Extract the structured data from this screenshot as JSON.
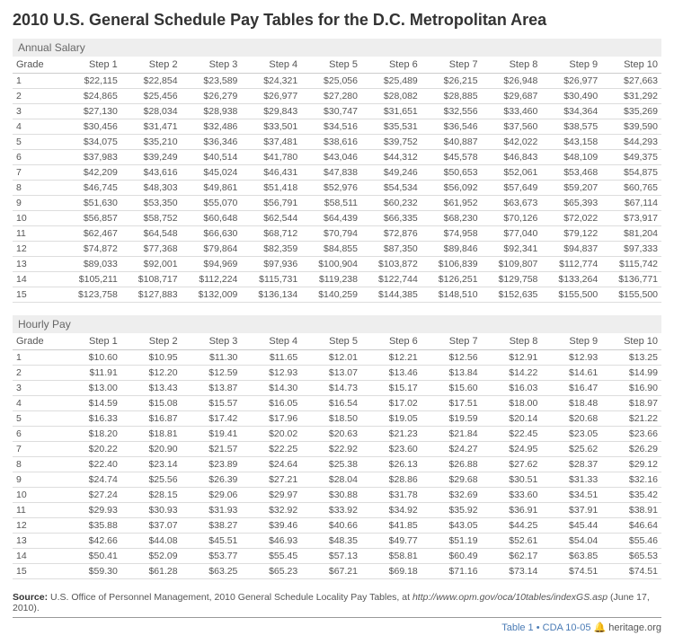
{
  "title": "2010 U.S. General Schedule Pay Tables for the D.C. Metropolitan Area",
  "annual": {
    "heading": "Annual Salary",
    "columns": [
      "Grade",
      "Step 1",
      "Step 2",
      "Step 3",
      "Step 4",
      "Step 5",
      "Step 6",
      "Step 7",
      "Step 8",
      "Step 9",
      "Step 10"
    ],
    "rows": [
      [
        "1",
        "$22,115",
        "$22,854",
        "$23,589",
        "$24,321",
        "$25,056",
        "$25,489",
        "$26,215",
        "$26,948",
        "$26,977",
        "$27,663"
      ],
      [
        "2",
        "$24,865",
        "$25,456",
        "$26,279",
        "$26,977",
        "$27,280",
        "$28,082",
        "$28,885",
        "$29,687",
        "$30,490",
        "$31,292"
      ],
      [
        "3",
        "$27,130",
        "$28,034",
        "$28,938",
        "$29,843",
        "$30,747",
        "$31,651",
        "$32,556",
        "$33,460",
        "$34,364",
        "$35,269"
      ],
      [
        "4",
        "$30,456",
        "$31,471",
        "$32,486",
        "$33,501",
        "$34,516",
        "$35,531",
        "$36,546",
        "$37,560",
        "$38,575",
        "$39,590"
      ],
      [
        "5",
        "$34,075",
        "$35,210",
        "$36,346",
        "$37,481",
        "$38,616",
        "$39,752",
        "$40,887",
        "$42,022",
        "$43,158",
        "$44,293"
      ],
      [
        "6",
        "$37,983",
        "$39,249",
        "$40,514",
        "$41,780",
        "$43,046",
        "$44,312",
        "$45,578",
        "$46,843",
        "$48,109",
        "$49,375"
      ],
      [
        "7",
        "$42,209",
        "$43,616",
        "$45,024",
        "$46,431",
        "$47,838",
        "$49,246",
        "$50,653",
        "$52,061",
        "$53,468",
        "$54,875"
      ],
      [
        "8",
        "$46,745",
        "$48,303",
        "$49,861",
        "$51,418",
        "$52,976",
        "$54,534",
        "$56,092",
        "$57,649",
        "$59,207",
        "$60,765"
      ],
      [
        "9",
        "$51,630",
        "$53,350",
        "$55,070",
        "$56,791",
        "$58,511",
        "$60,232",
        "$61,952",
        "$63,673",
        "$65,393",
        "$67,114"
      ],
      [
        "10",
        "$56,857",
        "$58,752",
        "$60,648",
        "$62,544",
        "$64,439",
        "$66,335",
        "$68,230",
        "$70,126",
        "$72,022",
        "$73,917"
      ],
      [
        "11",
        "$62,467",
        "$64,548",
        "$66,630",
        "$68,712",
        "$70,794",
        "$72,876",
        "$74,958",
        "$77,040",
        "$79,122",
        "$81,204"
      ],
      [
        "12",
        "$74,872",
        "$77,368",
        "$79,864",
        "$82,359",
        "$84,855",
        "$87,350",
        "$89,846",
        "$92,341",
        "$94,837",
        "$97,333"
      ],
      [
        "13",
        "$89,033",
        "$92,001",
        "$94,969",
        "$97,936",
        "$100,904",
        "$103,872",
        "$106,839",
        "$109,807",
        "$112,774",
        "$115,742"
      ],
      [
        "14",
        "$105,211",
        "$108,717",
        "$112,224",
        "$115,731",
        "$119,238",
        "$122,744",
        "$126,251",
        "$129,758",
        "$133,264",
        "$136,771"
      ],
      [
        "15",
        "$123,758",
        "$127,883",
        "$132,009",
        "$136,134",
        "$140,259",
        "$144,385",
        "$148,510",
        "$152,635",
        "$155,500",
        "$155,500"
      ]
    ]
  },
  "hourly": {
    "heading": "Hourly Pay",
    "columns": [
      "Grade",
      "Step 1",
      "Step 2",
      "Step 3",
      "Step 4",
      "Step 5",
      "Step 6",
      "Step 7",
      "Step 8",
      "Step 9",
      "Step 10"
    ],
    "rows": [
      [
        "1",
        "$10.60",
        "$10.95",
        "$11.30",
        "$11.65",
        "$12.01",
        "$12.21",
        "$12.56",
        "$12.91",
        "$12.93",
        "$13.25"
      ],
      [
        "2",
        "$11.91",
        "$12.20",
        "$12.59",
        "$12.93",
        "$13.07",
        "$13.46",
        "$13.84",
        "$14.22",
        "$14.61",
        "$14.99"
      ],
      [
        "3",
        "$13.00",
        "$13.43",
        "$13.87",
        "$14.30",
        "$14.73",
        "$15.17",
        "$15.60",
        "$16.03",
        "$16.47",
        "$16.90"
      ],
      [
        "4",
        "$14.59",
        "$15.08",
        "$15.57",
        "$16.05",
        "$16.54",
        "$17.02",
        "$17.51",
        "$18.00",
        "$18.48",
        "$18.97"
      ],
      [
        "5",
        "$16.33",
        "$16.87",
        "$17.42",
        "$17.96",
        "$18.50",
        "$19.05",
        "$19.59",
        "$20.14",
        "$20.68",
        "$21.22"
      ],
      [
        "6",
        "$18.20",
        "$18.81",
        "$19.41",
        "$20.02",
        "$20.63",
        "$21.23",
        "$21.84",
        "$22.45",
        "$23.05",
        "$23.66"
      ],
      [
        "7",
        "$20.22",
        "$20.90",
        "$21.57",
        "$22.25",
        "$22.92",
        "$23.60",
        "$24.27",
        "$24.95",
        "$25.62",
        "$26.29"
      ],
      [
        "8",
        "$22.40",
        "$23.14",
        "$23.89",
        "$24.64",
        "$25.38",
        "$26.13",
        "$26.88",
        "$27.62",
        "$28.37",
        "$29.12"
      ],
      [
        "9",
        "$24.74",
        "$25.56",
        "$26.39",
        "$27.21",
        "$28.04",
        "$28.86",
        "$29.68",
        "$30.51",
        "$31.33",
        "$32.16"
      ],
      [
        "10",
        "$27.24",
        "$28.15",
        "$29.06",
        "$29.97",
        "$30.88",
        "$31.78",
        "$32.69",
        "$33.60",
        "$34.51",
        "$35.42"
      ],
      [
        "11",
        "$29.93",
        "$30.93",
        "$31.93",
        "$32.92",
        "$33.92",
        "$34.92",
        "$35.92",
        "$36.91",
        "$37.91",
        "$38.91"
      ],
      [
        "12",
        "$35.88",
        "$37.07",
        "$38.27",
        "$39.46",
        "$40.66",
        "$41.85",
        "$43.05",
        "$44.25",
        "$45.44",
        "$46.64"
      ],
      [
        "13",
        "$42.66",
        "$44.08",
        "$45.51",
        "$46.93",
        "$48.35",
        "$49.77",
        "$51.19",
        "$52.61",
        "$54.04",
        "$55.46"
      ],
      [
        "14",
        "$50.41",
        "$52.09",
        "$53.77",
        "$55.45",
        "$57.13",
        "$58.81",
        "$60.49",
        "$62.17",
        "$63.85",
        "$65.53"
      ],
      [
        "15",
        "$59.30",
        "$61.28",
        "$63.25",
        "$65.23",
        "$67.21",
        "$69.18",
        "$71.16",
        "$73.14",
        "$74.51",
        "$74.51"
      ]
    ]
  },
  "source_label": "Source:",
  "source_text": " U.S. Office of Personnel Management, 2010 General Schedule Locality Pay Tables, at ",
  "source_url": "http://www.opm.gov/oca/10tables/indexGS.asp",
  "source_date": " (June 17, 2010).",
  "footer_table": "Table 1 • CDA 10-05",
  "footer_site": "heritage.org"
}
